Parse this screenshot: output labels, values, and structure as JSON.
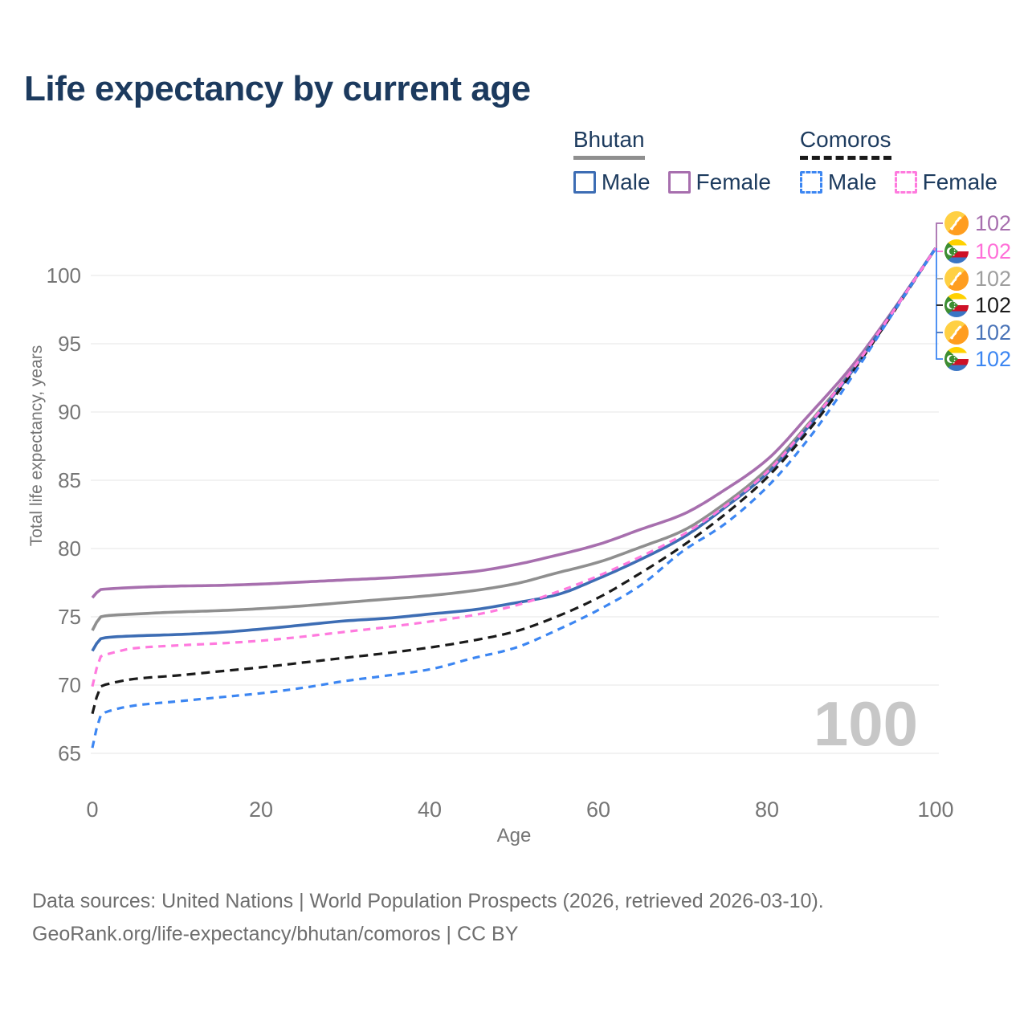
{
  "title": "Life expectancy by current age",
  "legend": {
    "groups": [
      {
        "country": "Bhutan",
        "line_style": "solid",
        "line_color": "#8f8f8f",
        "items": [
          {
            "label": "Male",
            "color": "#3d6db4",
            "style": "solid"
          },
          {
            "label": "Female",
            "color": "#a76fae",
            "style": "solid"
          }
        ]
      },
      {
        "country": "Comoros",
        "line_style": "dashed",
        "line_color": "#1a1a1a",
        "items": [
          {
            "label": "Male",
            "color": "#3c86f2",
            "style": "dashed"
          },
          {
            "label": "Female",
            "color": "#ff7ade",
            "style": "dashed"
          }
        ]
      }
    ]
  },
  "chart_data": {
    "type": "line",
    "title": "Life expectancy by current age",
    "xlabel": "Age",
    "ylabel": "Total life expectancy, years",
    "xlim": [
      0,
      100
    ],
    "ylim": [
      65,
      102
    ],
    "xticks": [
      0,
      20,
      40,
      60,
      80,
      100
    ],
    "yticks": [
      65,
      70,
      75,
      80,
      85,
      90,
      95,
      100
    ],
    "grid": "horizontal-only",
    "legend_position": "top-right",
    "x": [
      0,
      1,
      2,
      5,
      10,
      15,
      20,
      25,
      30,
      35,
      40,
      45,
      50,
      55,
      60,
      65,
      70,
      75,
      80,
      85,
      90,
      95,
      100
    ],
    "series": [
      {
        "name": "Bhutan Female",
        "country": "Bhutan",
        "sex": "Female",
        "color": "#a76fae",
        "line": "solid",
        "end_value_label": "102",
        "values": [
          76.4,
          77.0,
          77.05,
          77.15,
          77.25,
          77.3,
          77.4,
          77.55,
          77.7,
          77.85,
          78.05,
          78.3,
          78.8,
          79.5,
          80.3,
          81.4,
          82.5,
          84.3,
          86.5,
          89.8,
          93.3,
          97.5,
          102
        ]
      },
      {
        "name": "Bhutan",
        "country": "Bhutan",
        "sex": "Both",
        "color": "#8f8f8f",
        "line": "solid",
        "end_value_label": "102",
        "values": [
          74.0,
          75.0,
          75.1,
          75.2,
          75.35,
          75.45,
          75.6,
          75.8,
          76.05,
          76.3,
          76.55,
          76.9,
          77.4,
          78.2,
          79.0,
          80.1,
          81.3,
          83.3,
          85.8,
          89.2,
          93.0,
          97.4,
          102
        ]
      },
      {
        "name": "Bhutan Male",
        "country": "Bhutan",
        "sex": "Male",
        "color": "#3d6db4",
        "line": "solid",
        "end_value_label": "102",
        "values": [
          72.5,
          73.4,
          73.5,
          73.6,
          73.7,
          73.85,
          74.1,
          74.4,
          74.7,
          74.9,
          75.2,
          75.5,
          76.0,
          76.6,
          77.8,
          79.2,
          80.8,
          83.0,
          85.5,
          89.0,
          92.9,
          97.4,
          102
        ]
      },
      {
        "name": "Comoros",
        "country": "Comoros",
        "sex": "Both",
        "color": "#1a1a1a",
        "line": "dashed",
        "end_value_label": "102",
        "values": [
          67.9,
          69.9,
          70.1,
          70.45,
          70.7,
          71.0,
          71.3,
          71.65,
          72.0,
          72.35,
          72.75,
          73.25,
          73.9,
          75.0,
          76.4,
          78.2,
          80.2,
          82.5,
          85.2,
          88.7,
          92.8,
          97.3,
          102
        ]
      },
      {
        "name": "Comoros Male",
        "country": "Comoros",
        "sex": "Male",
        "color": "#3c86f2",
        "line": "dashed",
        "end_value_label": "102",
        "values": [
          65.4,
          67.8,
          68.1,
          68.5,
          68.8,
          69.1,
          69.4,
          69.8,
          70.3,
          70.7,
          71.15,
          71.95,
          72.7,
          74.0,
          75.5,
          77.3,
          79.8,
          81.8,
          84.5,
          88.1,
          92.5,
          97.3,
          102
        ]
      },
      {
        "name": "Comoros Female",
        "country": "Comoros",
        "sex": "Female",
        "color": "#ff7ade",
        "line": "dashed",
        "end_value_label": "102",
        "values": [
          69.9,
          72.1,
          72.3,
          72.7,
          72.9,
          73.05,
          73.25,
          73.55,
          73.9,
          74.25,
          74.65,
          75.1,
          75.8,
          76.8,
          78.0,
          79.4,
          81.0,
          83.1,
          85.6,
          89.1,
          93.0,
          97.4,
          102
        ]
      }
    ]
  },
  "end_labels": [
    {
      "flag": "bhutan-flag-icon",
      "country": "Bhutan",
      "series": "Bhutan Female",
      "value": "102",
      "color": "#a76fae"
    },
    {
      "flag": "comoros-flag-icon",
      "country": "Comoros",
      "series": "Comoros Female",
      "value": "102",
      "color": "#ff6fd8"
    },
    {
      "flag": "bhutan-flag-icon",
      "country": "Bhutan",
      "series": "Bhutan",
      "value": "102",
      "color": "#9e9e9e"
    },
    {
      "flag": "comoros-flag-icon",
      "country": "Comoros",
      "series": "Comoros",
      "value": "102",
      "color": "#1a1a1a"
    },
    {
      "flag": "bhutan-flag-icon",
      "country": "Bhutan",
      "series": "Bhutan Male",
      "value": "102",
      "color": "#4a74b8"
    },
    {
      "flag": "comoros-flag-icon",
      "country": "Comoros",
      "series": "Comoros Male",
      "value": "102",
      "color": "#3c86f2"
    }
  ],
  "watermark": "100",
  "footer": {
    "line1": "Data sources: United Nations | World Population Prospects (2026, retrieved 2026-03-10).",
    "line2": "GeoRank.org/life-expectancy/bhutan/comoros | CC BY"
  }
}
